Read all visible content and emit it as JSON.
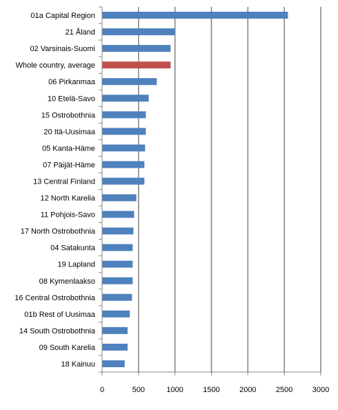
{
  "chart_data": {
    "type": "bar",
    "orientation": "horizontal",
    "title": "",
    "xlabel": "",
    "ylabel": "",
    "xlim": [
      0,
      3000
    ],
    "xticks": [
      0,
      500,
      1000,
      1500,
      2000,
      2500,
      3000
    ],
    "grid": "vertical",
    "legend": "none",
    "colors": {
      "bar": "#4f81bd",
      "highlight": "#c0504d",
      "grid": "#7f7f7f",
      "axis": "#868686"
    },
    "categories": [
      "01a Capital Region",
      "21 Åland",
      "02 Varsinais-Suomi",
      "Whole country, average",
      "06 Pirkanmaa",
      "10 Etelä-Savo",
      "15 Ostrobothnia",
      "20 Itä-Uusimaa",
      "05 Kanta-Häme",
      "07 Päijät-Häme",
      "13 Central Finland",
      "12 North Karelia",
      "11 Pohjois-Savo",
      "17 North Ostrobothnia",
      "04 Satakunta",
      "19 Lapland",
      "08 Kymenlaakso",
      "16 Central Ostrobothnia",
      "01b Rest of Uusimaa",
      "14 South Ostrobothnia",
      "09 South Karelia",
      "18 Kainuu"
    ],
    "values": [
      2550,
      1000,
      940,
      940,
      750,
      640,
      600,
      600,
      590,
      580,
      580,
      470,
      440,
      430,
      420,
      420,
      420,
      410,
      380,
      350,
      350,
      310
    ],
    "highlighted": [
      "Whole country, average"
    ]
  }
}
